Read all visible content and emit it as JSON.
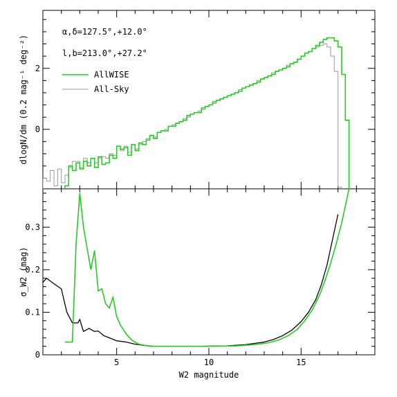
{
  "chart_data": [
    {
      "type": "line",
      "panel": "top",
      "title": "",
      "xlabel": "",
      "ylabel": "dlogN/dm (0.2 mag⁻¹ deg⁻²)",
      "xlim": [
        1,
        19
      ],
      "ylim": [
        -1.95,
        3.9
      ],
      "yticks": [
        0,
        2
      ],
      "xticks": [
        5,
        10,
        15
      ],
      "annotations": [
        "α,δ=127.5°,+12.0°",
        "l,b=213.0°,+27.2°"
      ],
      "series": [
        {
          "name": "AllWISE",
          "color": "#22cc22",
          "style": "step",
          "x": [
            2.3,
            2.5,
            2.7,
            2.9,
            3.1,
            3.3,
            3.5,
            3.7,
            3.9,
            4.1,
            4.3,
            4.5,
            4.7,
            4.9,
            5.1,
            5.3,
            5.5,
            5.7,
            5.9,
            6.1,
            6.3,
            6.5,
            6.7,
            6.9,
            7.1,
            7.3,
            7.5,
            7.7,
            7.9,
            8.1,
            8.3,
            8.5,
            8.7,
            8.9,
            9.1,
            9.3,
            9.5,
            9.7,
            9.9,
            10.1,
            10.3,
            10.5,
            10.7,
            10.9,
            11.1,
            11.3,
            11.5,
            11.7,
            11.9,
            12.1,
            12.3,
            12.5,
            12.7,
            12.9,
            13.1,
            13.3,
            13.5,
            13.7,
            13.9,
            14.1,
            14.3,
            14.5,
            14.7,
            14.9,
            15.1,
            15.3,
            15.5,
            15.7,
            15.9,
            16.1,
            16.3,
            16.5,
            16.7,
            16.9,
            17.1,
            17.3,
            17.5
          ],
          "values": [
            -1.85,
            -1.2,
            -1.35,
            -1.1,
            -1.3,
            -1.05,
            -1.2,
            -0.95,
            -1.25,
            -0.9,
            -1.15,
            -1.1,
            -0.85,
            -0.95,
            -0.55,
            -0.65,
            -0.6,
            -0.85,
            -0.5,
            -0.7,
            -0.45,
            -0.5,
            -0.35,
            -0.2,
            -0.3,
            -0.1,
            -0.05,
            -0.05,
            0.1,
            0.1,
            0.2,
            0.25,
            0.3,
            0.45,
            0.5,
            0.55,
            0.55,
            0.7,
            0.75,
            0.8,
            0.9,
            0.95,
            1.0,
            1.05,
            1.1,
            1.15,
            1.2,
            1.25,
            1.35,
            1.4,
            1.45,
            1.5,
            1.55,
            1.65,
            1.7,
            1.75,
            1.8,
            1.9,
            1.95,
            2.0,
            2.05,
            2.15,
            2.2,
            2.3,
            2.4,
            2.5,
            2.55,
            2.65,
            2.75,
            2.85,
            2.95,
            3.0,
            3.0,
            2.9,
            2.7,
            1.8,
            0.3
          ]
        },
        {
          "name": "All-Sky",
          "color": "#999999",
          "style": "step",
          "x": [
            1.1,
            1.3,
            1.5,
            1.7,
            1.9,
            2.1,
            2.3,
            2.5,
            2.7,
            2.9,
            3.1,
            3.3,
            3.5,
            3.7,
            3.9,
            4.1,
            4.3,
            4.5,
            4.7,
            4.9,
            5.1,
            5.3,
            5.5,
            5.7,
            5.9,
            6.1,
            6.3,
            6.5,
            6.7,
            6.9,
            7.1,
            7.3,
            7.5,
            7.7,
            7.9,
            8.1,
            8.3,
            8.5,
            8.7,
            8.9,
            9.1,
            9.3,
            9.5,
            9.7,
            9.9,
            10.1,
            10.3,
            10.5,
            10.7,
            10.9,
            11.1,
            11.3,
            11.5,
            11.7,
            11.9,
            12.1,
            12.3,
            12.5,
            12.7,
            12.9,
            13.1,
            13.3,
            13.5,
            13.7,
            13.9,
            14.1,
            14.3,
            14.5,
            14.7,
            14.9,
            15.1,
            15.3,
            15.5,
            15.7,
            15.9,
            16.1,
            16.3,
            16.5,
            16.7,
            16.9,
            17.1
          ],
          "values": [
            -1.6,
            -1.7,
            -1.35,
            -1.85,
            -1.3,
            -1.75,
            -1.5,
            -1.25,
            -1.05,
            -1.05,
            -1.25,
            -0.95,
            -1.1,
            -0.95,
            -1.1,
            -0.95,
            -0.9,
            -0.95,
            -0.8,
            -0.85,
            -0.55,
            -0.7,
            -0.55,
            -0.75,
            -0.5,
            -0.65,
            -0.5,
            -0.4,
            -0.3,
            -0.2,
            -0.25,
            -0.1,
            -0.05,
            0.0,
            0.1,
            0.15,
            0.2,
            0.25,
            0.35,
            0.4,
            0.5,
            0.55,
            0.6,
            0.65,
            0.75,
            0.8,
            0.85,
            0.95,
            1.0,
            1.05,
            1.1,
            1.15,
            1.2,
            1.3,
            1.35,
            1.4,
            1.45,
            1.5,
            1.6,
            1.65,
            1.7,
            1.75,
            1.85,
            1.9,
            1.95,
            2.0,
            2.1,
            2.15,
            2.2,
            2.3,
            2.4,
            2.5,
            2.55,
            2.65,
            2.7,
            2.75,
            2.8,
            2.7,
            2.4,
            1.9,
            -1.9
          ]
        }
      ]
    },
    {
      "type": "line",
      "panel": "bottom",
      "title": "",
      "xlabel": "W2 magnitude",
      "ylabel": "σ_W2 (mag)",
      "xlim": [
        1,
        19
      ],
      "ylim": [
        0,
        0.39
      ],
      "xticks": [
        5,
        10,
        15
      ],
      "yticks": [
        0,
        0.1,
        0.2,
        0.3
      ],
      "series": [
        {
          "name": "AllWISE",
          "color": "#22cc22",
          "x": [
            2.2,
            2.6,
            2.8,
            3.0,
            3.2,
            3.4,
            3.6,
            3.8,
            4.0,
            4.2,
            4.4,
            4.6,
            4.8,
            5.0,
            5.2,
            5.5,
            5.8,
            6.2,
            6.8,
            7.5,
            8.5,
            10.0,
            11.5,
            12.5,
            13.2,
            13.8,
            14.3,
            14.8,
            15.2,
            15.6,
            16.0,
            16.3,
            16.6,
            16.9,
            17.2,
            17.4,
            17.6
          ],
          "values": [
            0.03,
            0.03,
            0.26,
            0.38,
            0.3,
            0.25,
            0.2,
            0.245,
            0.15,
            0.155,
            0.12,
            0.11,
            0.135,
            0.09,
            0.07,
            0.05,
            0.035,
            0.025,
            0.02,
            0.02,
            0.02,
            0.02,
            0.021,
            0.024,
            0.028,
            0.035,
            0.045,
            0.06,
            0.08,
            0.105,
            0.14,
            0.175,
            0.215,
            0.26,
            0.31,
            0.35,
            0.39
          ]
        },
        {
          "name": "All-Sky",
          "color": "#000000",
          "x": [
            1.0,
            1.2,
            1.5,
            2.0,
            2.3,
            2.6,
            2.9,
            3.0,
            3.2,
            3.5,
            3.8,
            4.0,
            4.3,
            4.6,
            5.0,
            5.5,
            6.0,
            6.5,
            7.0,
            8.0,
            9.5,
            11.0,
            12.0,
            13.0,
            13.5,
            14.0,
            14.5,
            15.0,
            15.4,
            15.8,
            16.1,
            16.4,
            16.7,
            17.0
          ],
          "values": [
            0.17,
            0.18,
            0.17,
            0.155,
            0.1,
            0.075,
            0.075,
            0.083,
            0.055,
            0.062,
            0.055,
            0.056,
            0.045,
            0.04,
            0.033,
            0.03,
            0.025,
            0.022,
            0.02,
            0.02,
            0.02,
            0.021,
            0.024,
            0.03,
            0.036,
            0.045,
            0.058,
            0.078,
            0.1,
            0.13,
            0.165,
            0.21,
            0.27,
            0.33
          ]
        }
      ]
    }
  ]
}
